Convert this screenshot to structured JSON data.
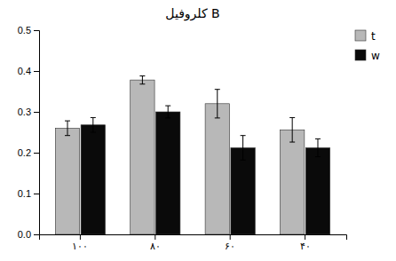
{
  "chart_data": {
    "type": "bar",
    "title": "کلروفیل B",
    "categories": [
      "۱۰۰",
      "۸۰",
      "۶۰",
      "۴۰"
    ],
    "series": [
      {
        "name": "t",
        "color": "#b8b8b8",
        "values": [
          0.26,
          0.378,
          0.32,
          0.256
        ],
        "errors": [
          0.018,
          0.01,
          0.035,
          0.03
        ]
      },
      {
        "name": "w",
        "color": "#0a0a0a",
        "values": [
          0.268,
          0.3,
          0.212,
          0.212
        ],
        "errors": [
          0.018,
          0.015,
          0.03,
          0.022
        ]
      }
    ],
    "ylim": [
      0,
      0.5
    ],
    "yticks": [
      {
        "value": 0,
        "label": "0.0"
      },
      0.1,
      0.2,
      0.3,
      0.4,
      0.5
    ],
    "grid": false,
    "legend": "upper right"
  }
}
